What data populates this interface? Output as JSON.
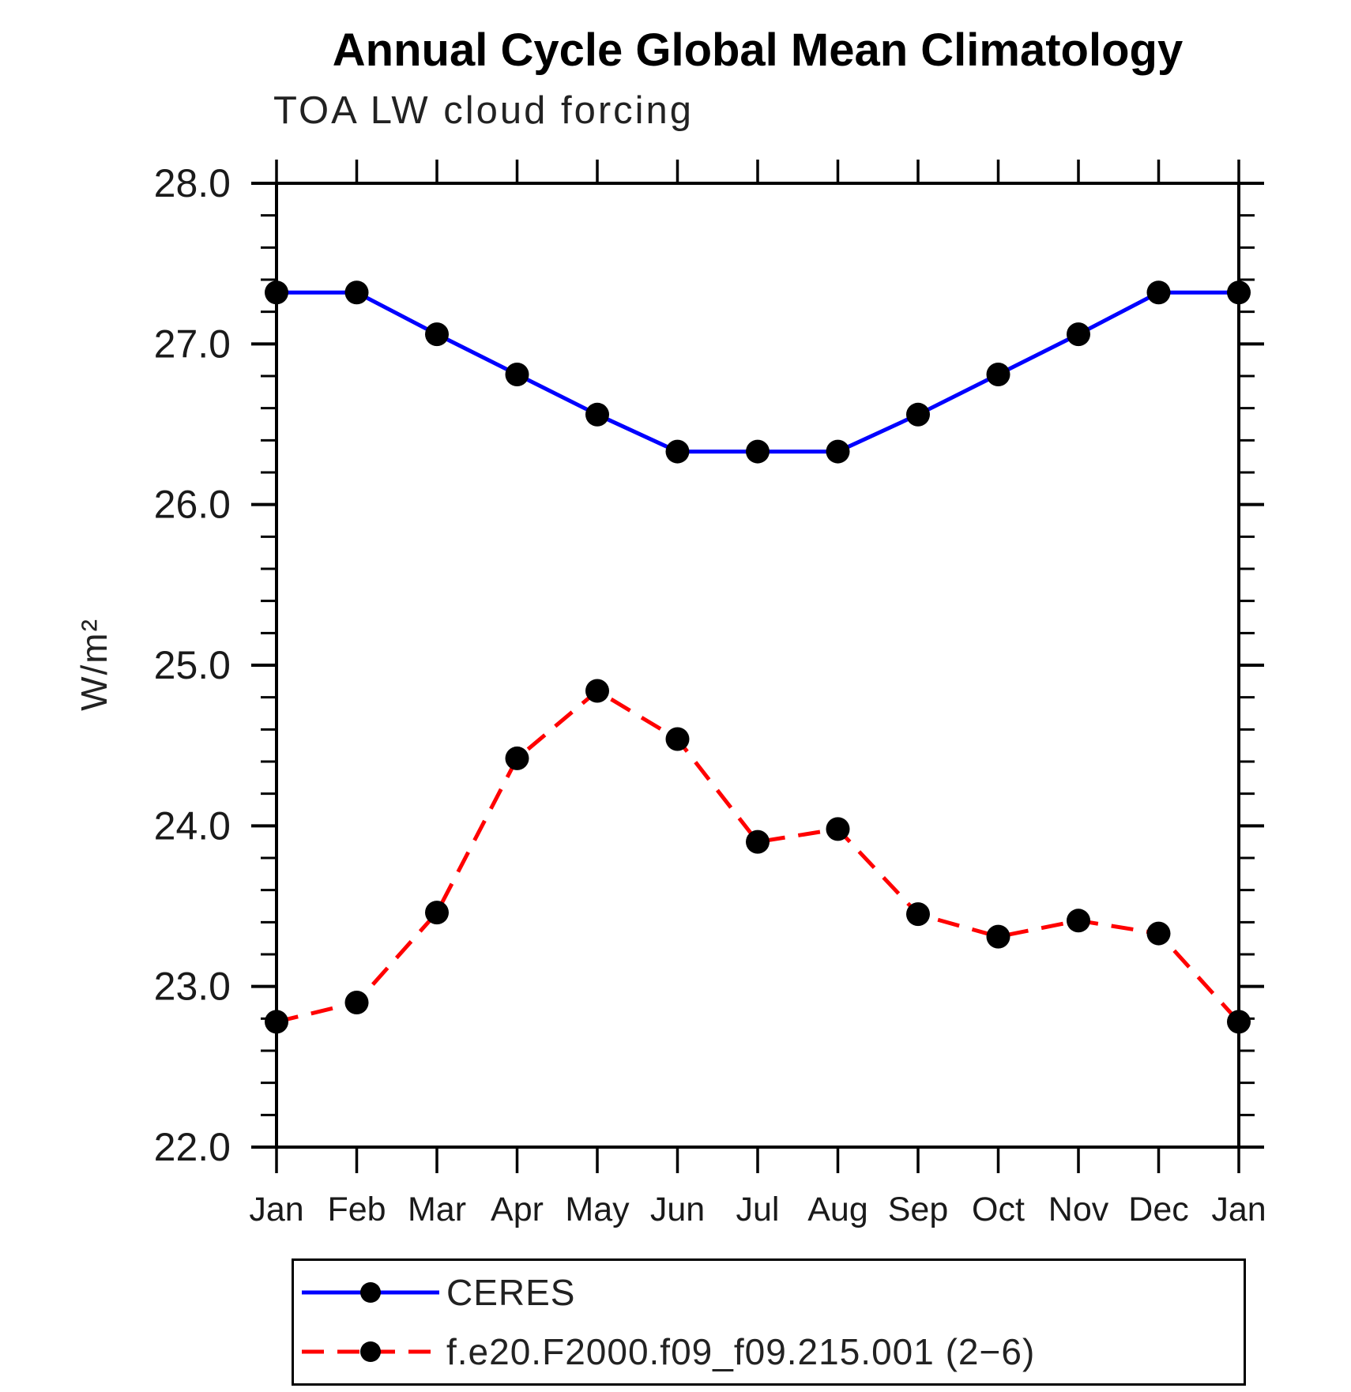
{
  "page": {
    "background": "#ffffff"
  },
  "header": {
    "title": "Annual Cycle Global Mean Climatology",
    "subtitle": "TOA LW cloud forcing"
  },
  "chart_data": {
    "type": "line",
    "title": "Annual Cycle Global Mean Climatology",
    "subtitle": "TOA LW cloud forcing",
    "xlabel": "",
    "ylabel": "W/m²",
    "x": [
      "Jan",
      "Feb",
      "Mar",
      "Apr",
      "May",
      "Jun",
      "Jul",
      "Aug",
      "Sep",
      "Oct",
      "Nov",
      "Dec",
      "Jan"
    ],
    "series": [
      {
        "name": "CERES",
        "color": "#0000ff",
        "line_style": "solid",
        "marker": "filled-circle",
        "marker_color": "#000000",
        "values": [
          27.32,
          27.32,
          27.06,
          26.81,
          26.56,
          26.33,
          26.33,
          26.33,
          26.56,
          26.81,
          27.06,
          27.32,
          27.32
        ]
      },
      {
        "name": "f.e20.F2000.f09_f09.215.001 (2−6)",
        "color": "#ff0000",
        "line_style": "dashed",
        "marker": "filled-circle",
        "marker_color": "#000000",
        "values": [
          22.78,
          22.9,
          23.46,
          24.42,
          24.84,
          24.54,
          23.9,
          23.98,
          23.45,
          23.31,
          23.41,
          23.33,
          22.78
        ]
      }
    ],
    "ylim": [
      22.0,
      28.0
    ],
    "ytick_labels": [
      "22.0",
      "23.0",
      "24.0",
      "25.0",
      "26.0",
      "27.0",
      "28.0"
    ],
    "ytick_interval": 1.0,
    "ytick_minor_interval": 0.2,
    "grid": false,
    "legend_position": "bottom-left-box",
    "frame_color": "#000000",
    "tick_label_color": "#1a1a1a"
  }
}
